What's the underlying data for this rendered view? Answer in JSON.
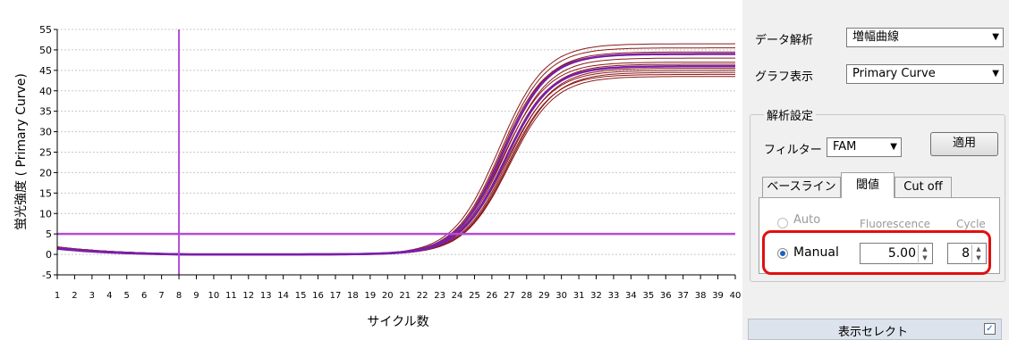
{
  "chart_data": {
    "type": "line",
    "xlabel": "サイクル数",
    "ylabel": "蛍光強度 ( Primary Curve)",
    "xlim": [
      1,
      40
    ],
    "ylim": [
      -5,
      55
    ],
    "x_ticks": [
      1,
      2,
      3,
      4,
      5,
      6,
      7,
      8,
      9,
      10,
      11,
      12,
      13,
      14,
      15,
      16,
      17,
      18,
      19,
      20,
      21,
      22,
      23,
      24,
      25,
      26,
      27,
      28,
      29,
      30,
      31,
      32,
      33,
      34,
      35,
      36,
      37,
      38,
      39,
      40
    ],
    "y_ticks": [
      55,
      50,
      45,
      40,
      35,
      30,
      25,
      20,
      15,
      10,
      5,
      0,
      -5
    ],
    "threshold": 5.0,
    "baseline_cycle_marker": 8,
    "grid": "horizontal dashed",
    "series_color": "#8b1a1a",
    "threshold_color": "#b44dd8",
    "series": [
      {
        "plateau": 51.5,
        "midpoint": 26.4,
        "slope": 1.32
      },
      {
        "plateau": 50.5,
        "midpoint": 26.5,
        "slope": 1.3
      },
      {
        "plateau": 49.5,
        "midpoint": 26.6,
        "slope": 1.3
      },
      {
        "plateau": 49.0,
        "midpoint": 26.5,
        "slope": 1.28
      },
      {
        "plateau": 48.0,
        "midpoint": 26.7,
        "slope": 1.3
      },
      {
        "plateau": 47.0,
        "midpoint": 26.6,
        "slope": 1.32
      },
      {
        "plateau": 46.5,
        "midpoint": 26.8,
        "slope": 1.3
      },
      {
        "plateau": 46.0,
        "midpoint": 26.7,
        "slope": 1.28
      },
      {
        "plateau": 45.5,
        "midpoint": 26.9,
        "slope": 1.3
      },
      {
        "plateau": 45.0,
        "midpoint": 26.8,
        "slope": 1.32
      },
      {
        "plateau": 44.5,
        "midpoint": 27.0,
        "slope": 1.3
      },
      {
        "plateau": 44.0,
        "midpoint": 26.9,
        "slope": 1.28
      },
      {
        "plateau": 43.5,
        "midpoint": 27.0,
        "slope": 1.3
      }
    ],
    "highlight_series": [
      {
        "plateau": 49.0,
        "midpoint": 26.6,
        "slope": 1.3,
        "color": "#7a1fa8"
      },
      {
        "plateau": 46.0,
        "midpoint": 26.75,
        "slope": 1.3,
        "color": "#7a1fa8"
      }
    ]
  },
  "panel": {
    "data_analysis_label": "データ解析",
    "data_analysis_value": "増幅曲線",
    "graph_display_label": "グラフ表示",
    "graph_display_value": "Primary Curve",
    "analysis_settings_title": "解析設定",
    "filter_label": "フィルター",
    "filter_value": "FAM",
    "apply_button": "適用",
    "tabs": [
      "ベースライン",
      "閾値",
      "Cut off"
    ],
    "active_tab": "閾値",
    "radio_auto": "Auto",
    "radio_manual": "Manual",
    "col_fluorescence": "Fluorescence",
    "col_cycle": "Cycle",
    "fluorescence_value": "5.00",
    "cycle_value": "8",
    "display_select_label": "表示セレクト",
    "display_select_checked": "✓"
  }
}
